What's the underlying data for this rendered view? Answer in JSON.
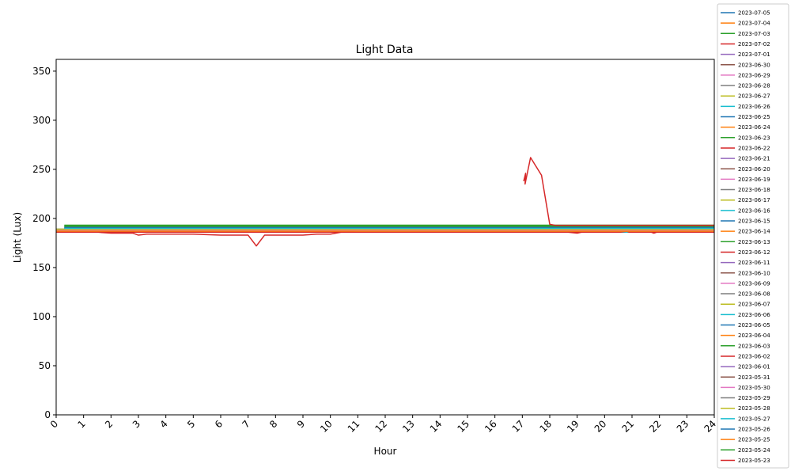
{
  "chart_data": {
    "type": "line",
    "title": "Light Data",
    "xlabel": "Hour",
    "ylabel": "Light (Lux)",
    "xlim": [
      0,
      24
    ],
    "ylim": [
      0,
      362
    ],
    "x_ticks": [
      "0",
      "1",
      "2",
      "3",
      "4",
      "5",
      "6",
      "7",
      "8",
      "9",
      "10",
      "11",
      "12",
      "13",
      "14",
      "15",
      "16",
      "17",
      "18",
      "19",
      "20",
      "21",
      "22",
      "23",
      "24"
    ],
    "y_ticks": [
      "0",
      "50",
      "100",
      "150",
      "200",
      "250",
      "300",
      "350"
    ],
    "grid": false,
    "legend_position": "outside-right",
    "palette": [
      "#1f77b4",
      "#ff7f0e",
      "#2ca02c",
      "#d62728",
      "#9467bd",
      "#8c564b",
      "#e377c2",
      "#7f7f7f",
      "#bcbd22",
      "#17becf"
    ],
    "series": [
      {
        "name": "2023-07-05",
        "x": [
          0.3,
          4,
          8,
          12,
          16,
          20,
          24
        ],
        "y": [
          191,
          191,
          191,
          191,
          191,
          191,
          191
        ]
      },
      {
        "name": "2023-07-04",
        "x": [
          0.3,
          4,
          8,
          12,
          16,
          20,
          24
        ],
        "y": [
          192,
          192,
          192,
          192,
          192,
          192,
          192
        ]
      },
      {
        "name": "2023-07-03",
        "x": [
          0.3,
          4,
          8,
          12,
          16,
          20,
          24
        ],
        "y": [
          193,
          193,
          193,
          193,
          193,
          193,
          193
        ]
      },
      {
        "name": "2023-07-02",
        "x": [
          0.3,
          4,
          8,
          12,
          16,
          20,
          24
        ],
        "y": [
          190,
          190,
          190,
          190,
          190,
          190,
          190
        ]
      },
      {
        "name": "2023-07-01",
        "x": [
          0.3,
          4,
          8,
          12,
          16,
          20,
          24
        ],
        "y": [
          189,
          189,
          189,
          189,
          189,
          189,
          189
        ]
      },
      {
        "name": "2023-06-30",
        "x": [
          0,
          4,
          8,
          12,
          16,
          20,
          24
        ],
        "y": [
          187,
          187,
          187,
          187,
          187,
          187,
          187
        ]
      },
      {
        "name": "2023-06-29",
        "x": [
          0,
          4,
          8,
          12,
          16,
          20,
          24
        ],
        "y": [
          188,
          188,
          188,
          188,
          188,
          188,
          188
        ]
      },
      {
        "name": "2023-06-28",
        "x": [
          0,
          4,
          8,
          12,
          16,
          20,
          24
        ],
        "y": [
          188,
          188,
          188,
          188,
          188,
          188,
          188
        ]
      },
      {
        "name": "2023-06-27",
        "x": [
          0,
          4,
          8,
          12,
          16,
          20,
          24
        ],
        "y": [
          189,
          189,
          189,
          189,
          189,
          189,
          189
        ]
      },
      {
        "name": "2023-06-26",
        "x": [
          0,
          4,
          8,
          12,
          16,
          18.6,
          18.8,
          20,
          24
        ],
        "y": [
          188,
          188,
          188,
          188,
          188,
          188,
          186,
          188,
          188
        ]
      },
      {
        "name": "2023-06-25",
        "x": [
          0.3,
          4,
          8,
          12,
          16,
          20,
          24
        ],
        "y": [
          190,
          190,
          190,
          190,
          190,
          190,
          190
        ]
      },
      {
        "name": "2023-06-24",
        "x": [
          0,
          4,
          8,
          12,
          16,
          20,
          24
        ],
        "y": [
          187,
          187,
          187,
          187,
          187,
          187,
          187
        ]
      },
      {
        "name": "2023-06-23",
        "x": [
          0.3,
          4,
          8,
          12,
          16,
          20,
          24
        ],
        "y": [
          193,
          193,
          193,
          193,
          193,
          193,
          193
        ]
      },
      {
        "name": "2023-06-22",
        "x": [
          0,
          4,
          8,
          12,
          16,
          20,
          24
        ],
        "y": [
          186,
          186,
          186,
          186,
          186,
          186,
          186
        ]
      },
      {
        "name": "2023-06-21",
        "x": [
          0.3,
          4,
          8,
          12,
          16,
          20,
          24
        ],
        "y": [
          190,
          190,
          190,
          190,
          190,
          190,
          190
        ]
      },
      {
        "name": "2023-06-20",
        "x": [
          0,
          4,
          8,
          12,
          16,
          20,
          24
        ],
        "y": [
          187,
          187,
          187,
          187,
          187,
          187,
          187
        ]
      },
      {
        "name": "2023-06-19",
        "x": [
          0,
          4,
          8,
          12,
          16,
          20,
          24
        ],
        "y": [
          188,
          188,
          188,
          188,
          188,
          188,
          188
        ]
      },
      {
        "name": "2023-06-18",
        "x": [
          0,
          4,
          8,
          12,
          16,
          20,
          24
        ],
        "y": [
          188,
          188,
          188,
          188,
          188,
          188,
          188
        ]
      },
      {
        "name": "2023-06-17",
        "x": [
          0,
          4,
          8,
          12,
          16,
          20,
          24
        ],
        "y": [
          189,
          189,
          189,
          189,
          189,
          189,
          189
        ]
      },
      {
        "name": "2023-06-16",
        "x": [
          0,
          4,
          8,
          12,
          16,
          20,
          20.8,
          21,
          24
        ],
        "y": [
          189,
          189,
          189,
          189,
          189,
          189,
          186,
          188,
          189
        ]
      },
      {
        "name": "2023-06-15",
        "x": [
          0.3,
          4,
          8,
          12,
          16,
          20,
          24
        ],
        "y": [
          191,
          191,
          191,
          191,
          191,
          191,
          191
        ]
      },
      {
        "name": "2023-06-14",
        "x": [
          0,
          4,
          8,
          12,
          16,
          20,
          24
        ],
        "y": [
          187,
          187,
          187,
          187,
          187,
          187,
          187
        ]
      },
      {
        "name": "2023-06-13",
        "x": [
          0.3,
          4,
          8,
          12,
          16,
          20,
          24
        ],
        "y": [
          192,
          192,
          192,
          192,
          192,
          192,
          192
        ]
      },
      {
        "name": "2023-06-12",
        "x": [
          0,
          0.5,
          1,
          1.5,
          2,
          2.5,
          2.8,
          3,
          3.3,
          4,
          5,
          6,
          7,
          7.3,
          7.6,
          8,
          9,
          9.5,
          10,
          10.4,
          10.8,
          11,
          12,
          12.5,
          13,
          13.3,
          14,
          14.5,
          15,
          15.5,
          16,
          16.5,
          17,
          18,
          19,
          19.5,
          20,
          20.5,
          21,
          21.5,
          21.8,
          22,
          22.5,
          23,
          23.5,
          24
        ],
        "y": [
          186,
          186,
          186,
          186,
          185,
          185,
          185,
          183,
          184,
          184,
          184,
          183,
          183,
          172,
          183,
          183,
          183,
          184,
          184,
          186,
          186,
          186,
          187,
          188,
          187,
          186,
          187,
          188,
          189,
          188,
          188,
          188,
          188,
          188,
          185,
          188,
          188,
          188,
          188,
          188,
          185,
          187,
          187,
          187,
          187,
          187
        ]
      },
      {
        "name": "2023-06-11",
        "x": [
          0.3,
          4,
          8,
          12,
          16,
          20,
          24
        ],
        "y": [
          190,
          190,
          190,
          190,
          190,
          190,
          190
        ]
      },
      {
        "name": "2023-06-10",
        "x": [
          0,
          4,
          8,
          12,
          16,
          20,
          24
        ],
        "y": [
          187,
          187,
          187,
          187,
          187,
          187,
          187
        ]
      },
      {
        "name": "2023-06-09",
        "x": [
          0,
          4,
          8,
          12,
          16,
          20,
          24
        ],
        "y": [
          188,
          188,
          188,
          188,
          188,
          188,
          188
        ]
      },
      {
        "name": "2023-06-08",
        "x": [
          0,
          4,
          8,
          12,
          16,
          20,
          24
        ],
        "y": [
          189,
          189,
          189,
          189,
          189,
          189,
          189
        ]
      },
      {
        "name": "2023-06-07",
        "x": [
          0,
          4,
          8,
          12,
          16,
          20,
          24
        ],
        "y": [
          189,
          189,
          189,
          189,
          189,
          189,
          189
        ]
      },
      {
        "name": "2023-06-06",
        "x": [
          0.3,
          4,
          8,
          12,
          16,
          20,
          24
        ],
        "y": [
          190,
          190,
          190,
          190,
          190,
          190,
          190
        ]
      },
      {
        "name": "2023-06-05",
        "x": [
          0.3,
          4,
          8,
          12,
          16,
          20,
          24
        ],
        "y": [
          191,
          191,
          191,
          191,
          191,
          191,
          191
        ]
      },
      {
        "name": "2023-06-04",
        "x": [
          0,
          4,
          8,
          12,
          16,
          20,
          24
        ],
        "y": [
          187,
          187,
          187,
          187,
          187,
          187,
          187
        ]
      },
      {
        "name": "2023-06-03",
        "x": [
          0.3,
          4,
          8,
          12,
          16,
          20,
          24
        ],
        "y": [
          193,
          193,
          193,
          193,
          193,
          193,
          193
        ]
      },
      {
        "name": "2023-06-02",
        "x": [
          0,
          1,
          2,
          3,
          4,
          5,
          6,
          7,
          8,
          9,
          10,
          11,
          12,
          13,
          14,
          15,
          16,
          17,
          18,
          19,
          20,
          21,
          22,
          23,
          24
        ],
        "y": [
          186,
          186,
          186,
          186,
          186,
          186,
          186,
          186,
          186,
          186,
          186,
          187,
          187,
          187,
          187,
          187,
          187,
          187,
          187,
          187,
          187,
          187,
          187,
          187,
          187
        ]
      },
      {
        "name": "2023-06-01",
        "x": [
          0.3,
          4,
          8,
          12,
          16,
          20,
          23,
          24
        ],
        "y": [
          190,
          190,
          190,
          190,
          190,
          190,
          189,
          187
        ]
      },
      {
        "name": "2023-05-31",
        "x": [
          0,
          4,
          8,
          12,
          16,
          20,
          24
        ],
        "y": [
          188,
          188,
          188,
          188,
          188,
          188,
          188
        ]
      },
      {
        "name": "2023-05-30",
        "x": [
          0,
          4,
          8,
          12,
          16,
          20,
          24
        ],
        "y": [
          188,
          188,
          188,
          188,
          188,
          188,
          188
        ]
      },
      {
        "name": "2023-05-29",
        "x": [
          0,
          4,
          8,
          12,
          16,
          20,
          24
        ],
        "y": [
          189,
          189,
          189,
          189,
          189,
          189,
          189
        ]
      },
      {
        "name": "2023-05-28",
        "x": [
          0,
          4,
          8,
          12,
          16,
          20,
          24
        ],
        "y": [
          189,
          189,
          189,
          189,
          189,
          189,
          189
        ]
      },
      {
        "name": "2023-05-27",
        "x": [
          0.3,
          4,
          8,
          12,
          16,
          20,
          24
        ],
        "y": [
          190,
          190,
          190,
          190,
          190,
          190,
          190
        ]
      },
      {
        "name": "2023-05-26",
        "x": [
          0.3,
          4,
          8,
          12,
          16,
          20,
          24
        ],
        "y": [
          191,
          191,
          191,
          191,
          191,
          191,
          191
        ]
      },
      {
        "name": "2023-05-25",
        "x": [
          0,
          4,
          8,
          12,
          16,
          20,
          24
        ],
        "y": [
          187,
          187,
          187,
          187,
          187,
          187,
          187
        ]
      },
      {
        "name": "2023-05-24",
        "x": [
          0.3,
          4,
          8,
          12,
          16,
          20,
          24
        ],
        "y": [
          192,
          192,
          192,
          192,
          192,
          192,
          192
        ]
      },
      {
        "name": "2023-05-23",
        "x": [
          17.05,
          17.12,
          17.1,
          17.3,
          17.7,
          18.0,
          18.2,
          19,
          20,
          21,
          22,
          23,
          24
        ],
        "y": [
          238,
          246,
          235,
          262,
          244,
          194,
          193,
          193,
          193,
          193,
          193,
          193,
          193
        ]
      }
    ]
  }
}
